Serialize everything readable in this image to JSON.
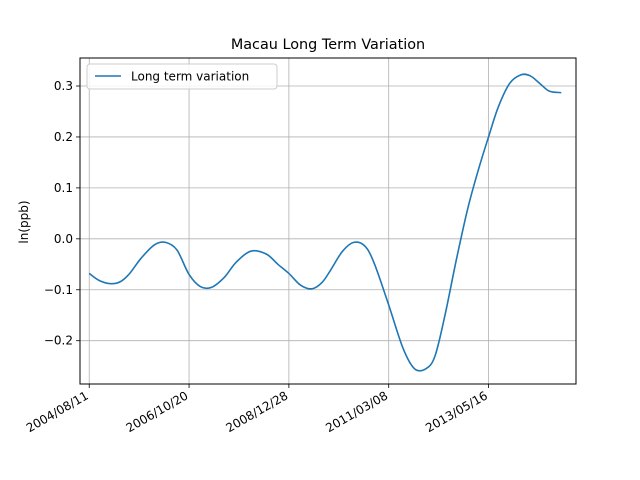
{
  "chart_data": {
    "type": "line",
    "title": "Macau Long Term Variation",
    "xlabel": "",
    "ylabel": "ln(ppb)",
    "xlim": [
      "2004/05/29",
      "2015/04/17"
    ],
    "ylim": [
      -0.285,
      0.355
    ],
    "grid": true,
    "legend": "top-left",
    "x_ticks": [
      "2004/08/11",
      "2006/10/20",
      "2008/12/28",
      "2011/03/08",
      "2013/05/16"
    ],
    "y_ticks": [
      -0.2,
      -0.1,
      0.0,
      0.1,
      0.2,
      0.3
    ],
    "y_tick_labels": [
      "−0.2",
      "−0.1",
      "0.0",
      "0.1",
      "0.2",
      "0.3"
    ],
    "series": [
      {
        "name": "Long term variation",
        "color": "#1f77b4",
        "x": [
          "2004/08/11",
          "2004/11/01",
          "2005/02/01",
          "2005/04/18",
          "2005/07/01",
          "2005/10/01",
          "2006/01/15",
          "2006/04/15",
          "2006/07/15",
          "2006/10/20",
          "2007/01/20",
          "2007/04/20",
          "2007/08/01",
          "2007/11/01",
          "2008/03/01",
          "2008/07/01",
          "2008/10/01",
          "2008/12/28",
          "2009/04/01",
          "2009/07/01",
          "2009/09/22",
          "2009/12/01",
          "2010/03/01",
          "2010/06/01",
          "2010/09/01",
          "2010/11/15",
          "2011/03/08",
          "2011/07/01",
          "2011/10/01",
          "2012/01/01",
          "2012/03/13",
          "2012/06/01",
          "2012/09/01",
          "2012/12/01",
          "2013/03/01",
          "2013/05/16",
          "2013/08/01",
          "2013/11/01",
          "2014/02/01",
          "2014/04/15",
          "2014/07/01",
          "2014/09/15",
          "2014/12/20"
        ],
        "values": [
          -0.068,
          -0.082,
          -0.088,
          -0.084,
          -0.068,
          -0.038,
          -0.012,
          -0.007,
          -0.022,
          -0.07,
          -0.094,
          -0.095,
          -0.075,
          -0.046,
          -0.024,
          -0.03,
          -0.05,
          -0.068,
          -0.091,
          -0.098,
          -0.085,
          -0.06,
          -0.025,
          -0.007,
          -0.015,
          -0.05,
          -0.13,
          -0.215,
          -0.255,
          -0.255,
          -0.23,
          -0.15,
          -0.04,
          0.06,
          0.14,
          0.2,
          0.258,
          0.305,
          0.322,
          0.32,
          0.305,
          0.29,
          0.287
        ]
      }
    ]
  }
}
